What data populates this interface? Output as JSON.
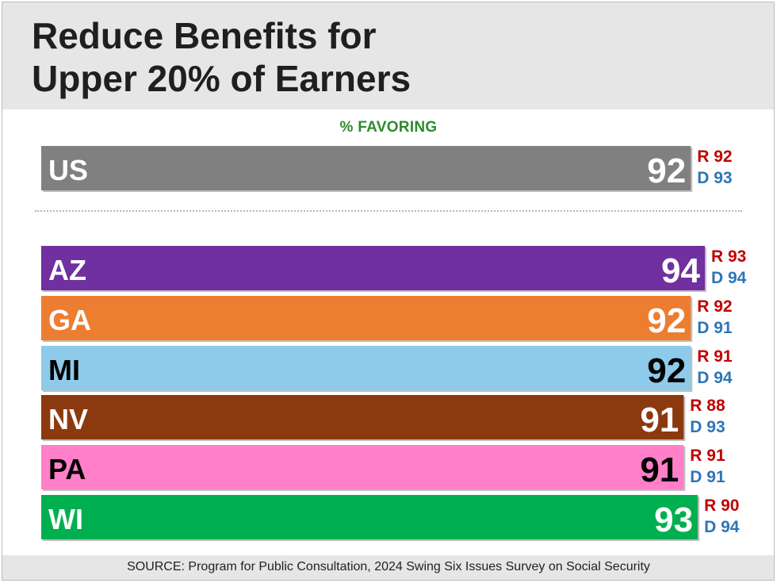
{
  "header": {
    "title": "Reduce Benefits for\nUpper 20% of Earners"
  },
  "chart_data": {
    "type": "bar",
    "subtitle": "% FAVORING",
    "categories": [
      "US",
      "AZ",
      "GA",
      "MI",
      "NV",
      "PA",
      "WI"
    ],
    "values": [
      92,
      94,
      92,
      92,
      91,
      91,
      93
    ],
    "republican": [
      92,
      93,
      92,
      91,
      88,
      91,
      90
    ],
    "democrat": [
      93,
      94,
      91,
      94,
      93,
      91,
      94
    ],
    "r_prefix": "R",
    "d_prefix": "D",
    "colors": [
      "#808080",
      "#7030a0",
      "#ed7d31",
      "#8ecae9",
      "#8b3a0f",
      "#ff7fc8",
      "#00b050"
    ],
    "label_colors": [
      "#ffffff",
      "#ffffff",
      "#ffffff",
      "#000000",
      "#ffffff",
      "#000000",
      "#ffffff"
    ],
    "r_color": "#c00000",
    "d_color": "#2e75b6"
  },
  "footer": {
    "source": "SOURCE: Program for Public Consultation, 2024 Swing Six Issues Survey on Social Security"
  }
}
